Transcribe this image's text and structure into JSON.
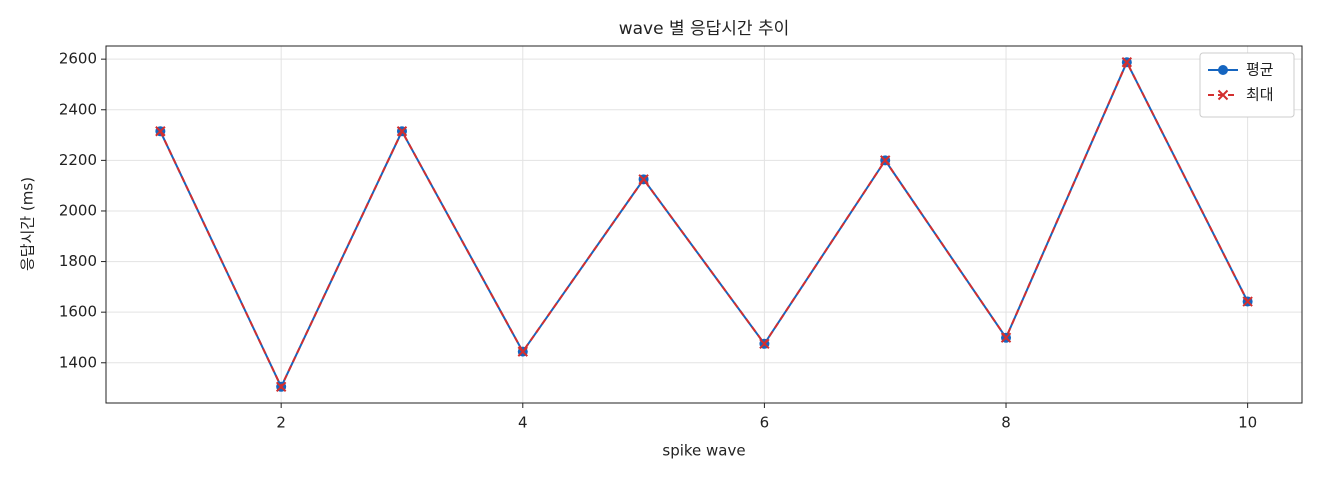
{
  "chart_data": {
    "type": "line",
    "title": "wave 별 응답시간 추이",
    "xlabel": "spike wave",
    "ylabel": "응답시간 (ms)",
    "x": [
      1,
      2,
      3,
      4,
      5,
      6,
      7,
      8,
      9,
      10
    ],
    "series": [
      {
        "name": "평균",
        "color": "#1565c0",
        "marker": "o",
        "linestyle": "solid",
        "values": [
          2315,
          1305,
          2315,
          1444,
          2125,
          1475,
          2200,
          1499,
          2588,
          1642
        ]
      },
      {
        "name": "최대",
        "color": "#d32f2f",
        "marker": "x",
        "linestyle": "dashed",
        "values": [
          2315,
          1305,
          2315,
          1444,
          2125,
          1475,
          2200,
          1499,
          2588,
          1642
        ]
      }
    ],
    "xlim": [
      0.55,
      10.45
    ],
    "xticks": [
      2,
      4,
      6,
      8,
      10
    ],
    "ylim": [
      1241,
      2652
    ],
    "yticks": [
      1400,
      1600,
      1800,
      2000,
      2200,
      2400,
      2600
    ],
    "grid": true,
    "legend": "upper right"
  }
}
